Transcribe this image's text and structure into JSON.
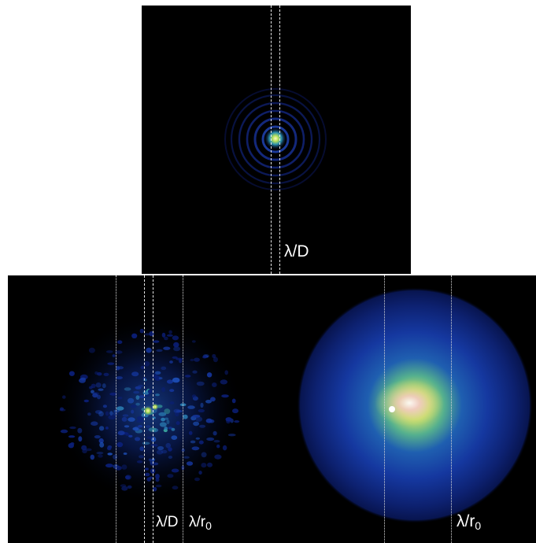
{
  "top_panel": {
    "label_diffraction": "λ/D"
  },
  "bottom_left_panel": {
    "label_diffraction": "λ/D",
    "label_seeing_main": "λ/r",
    "label_seeing_sub": "0"
  },
  "bottom_right_panel": {
    "label_seeing_main": "λ/r",
    "label_seeing_sub": "0"
  },
  "colors": {
    "background": "#000000",
    "guide_lines": "#e8e8e8",
    "colormap": [
      "#000000",
      "#0a1a6a",
      "#1f4fb0",
      "#2ea6a0",
      "#a8d84a",
      "#f5e9c4",
      "#ffffff"
    ]
  }
}
